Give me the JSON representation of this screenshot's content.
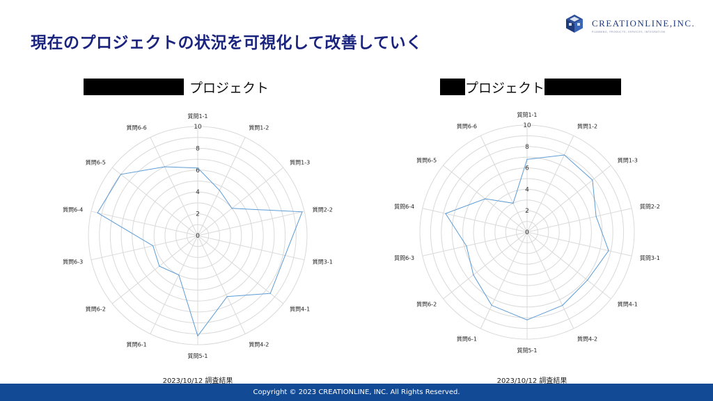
{
  "slide": {
    "title": "現在のプロジェクトの状況を可視化して改善していく",
    "footer": "Copyright © 2023 CREATIONLINE, INC. All Rights Reserved."
  },
  "logo": {
    "name": "CREATIONLINE,INC.",
    "tagline": "PLANNING, PRODUCTS, SERVICES, INTEGRATION"
  },
  "colors": {
    "brand": "#1a237e",
    "footer_bg": "#134a96",
    "series": "#5b9bd5",
    "grid": "#d9d9d9"
  },
  "chart_data": [
    {
      "type": "radar",
      "title": "プロジェクト",
      "title_redacted_prefix": true,
      "caption": "2023/10/12 調査結果",
      "categories": [
        "質問1-1",
        "質問1-2",
        "質問1-3",
        "質問2-2",
        "質問3-1",
        "質問4-1",
        "質問4-2",
        "質問5-1",
        "質問6-1",
        "質問6-2",
        "質問6-3",
        "質問6-4",
        "質問6-5",
        "質問6-6"
      ],
      "ticks": [
        0,
        2,
        4,
        6,
        8,
        10
      ],
      "range": [
        0,
        10
      ],
      "series": [
        {
          "values": [
            6.2,
            4.6,
            4.0,
            9.8,
            8.2,
            8.5,
            6.2,
            9.2,
            4.0,
            4.5,
            4.2,
            9.4,
            9.0,
            7.0
          ]
        }
      ]
    },
    {
      "type": "radar",
      "title": "プロジェクト",
      "title_redacted_prefix": true,
      "title_redacted_suffix": true,
      "caption": "2023/10/12 調査結果",
      "categories": [
        "質問1-1",
        "質問1-2",
        "質問1-3",
        "質問2-2",
        "質問3-1",
        "質問4-1",
        "質問4-2",
        "質問5-1",
        "質問6-1",
        "質問6-2",
        "質問6-3",
        "質問6-4",
        "質問6-5",
        "質問6-6"
      ],
      "ticks": [
        0,
        2,
        4,
        6,
        8,
        10
      ],
      "range": [
        0,
        10
      ],
      "series": [
        {
          "values": [
            6.8,
            8.0,
            7.8,
            6.6,
            7.8,
            7.2,
            7.6,
            8.2,
            7.6,
            6.4,
            5.8,
            7.8,
            5.0,
            3.0
          ]
        }
      ]
    }
  ]
}
